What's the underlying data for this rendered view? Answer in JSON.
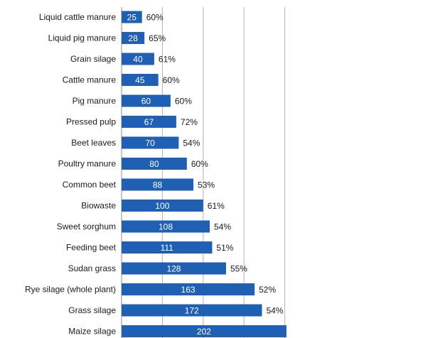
{
  "chart_data": {
    "type": "bar",
    "orientation": "horizontal",
    "categories": [
      "Liquid cattle manure",
      "Liquid pig manure",
      "Grain silage",
      "Cattle manure",
      "Pig manure",
      "Pressed pulp",
      "Beet leaves",
      "Poultry manure",
      "Common beet",
      "Biowaste",
      "Sweet sorghum",
      "Feeding beet",
      "Sudan grass",
      "Rye silage (whole plant)",
      "Grass silage",
      "Maize silage"
    ],
    "values": [
      25,
      28,
      40,
      45,
      60,
      67,
      70,
      80,
      88,
      100,
      108,
      111,
      128,
      163,
      172,
      202
    ],
    "percent_labels": [
      "60%",
      "65%",
      "61%",
      "60%",
      "60%",
      "72%",
      "54%",
      "60%",
      "53%",
      "61%",
      "54%",
      "51%",
      "55%",
      "52%",
      "54%",
      ""
    ],
    "xlim": [
      0,
      200
    ],
    "x_gridlines": [
      0,
      50,
      100,
      150,
      200
    ],
    "grid": true,
    "legend": "none",
    "title": "",
    "xlabel": "",
    "ylabel": "",
    "colors": {
      "bar": "#1F5FB4",
      "grid": "#B3B3B3",
      "text": "#1A1A1A",
      "value_text": "#FFFFFF"
    }
  }
}
